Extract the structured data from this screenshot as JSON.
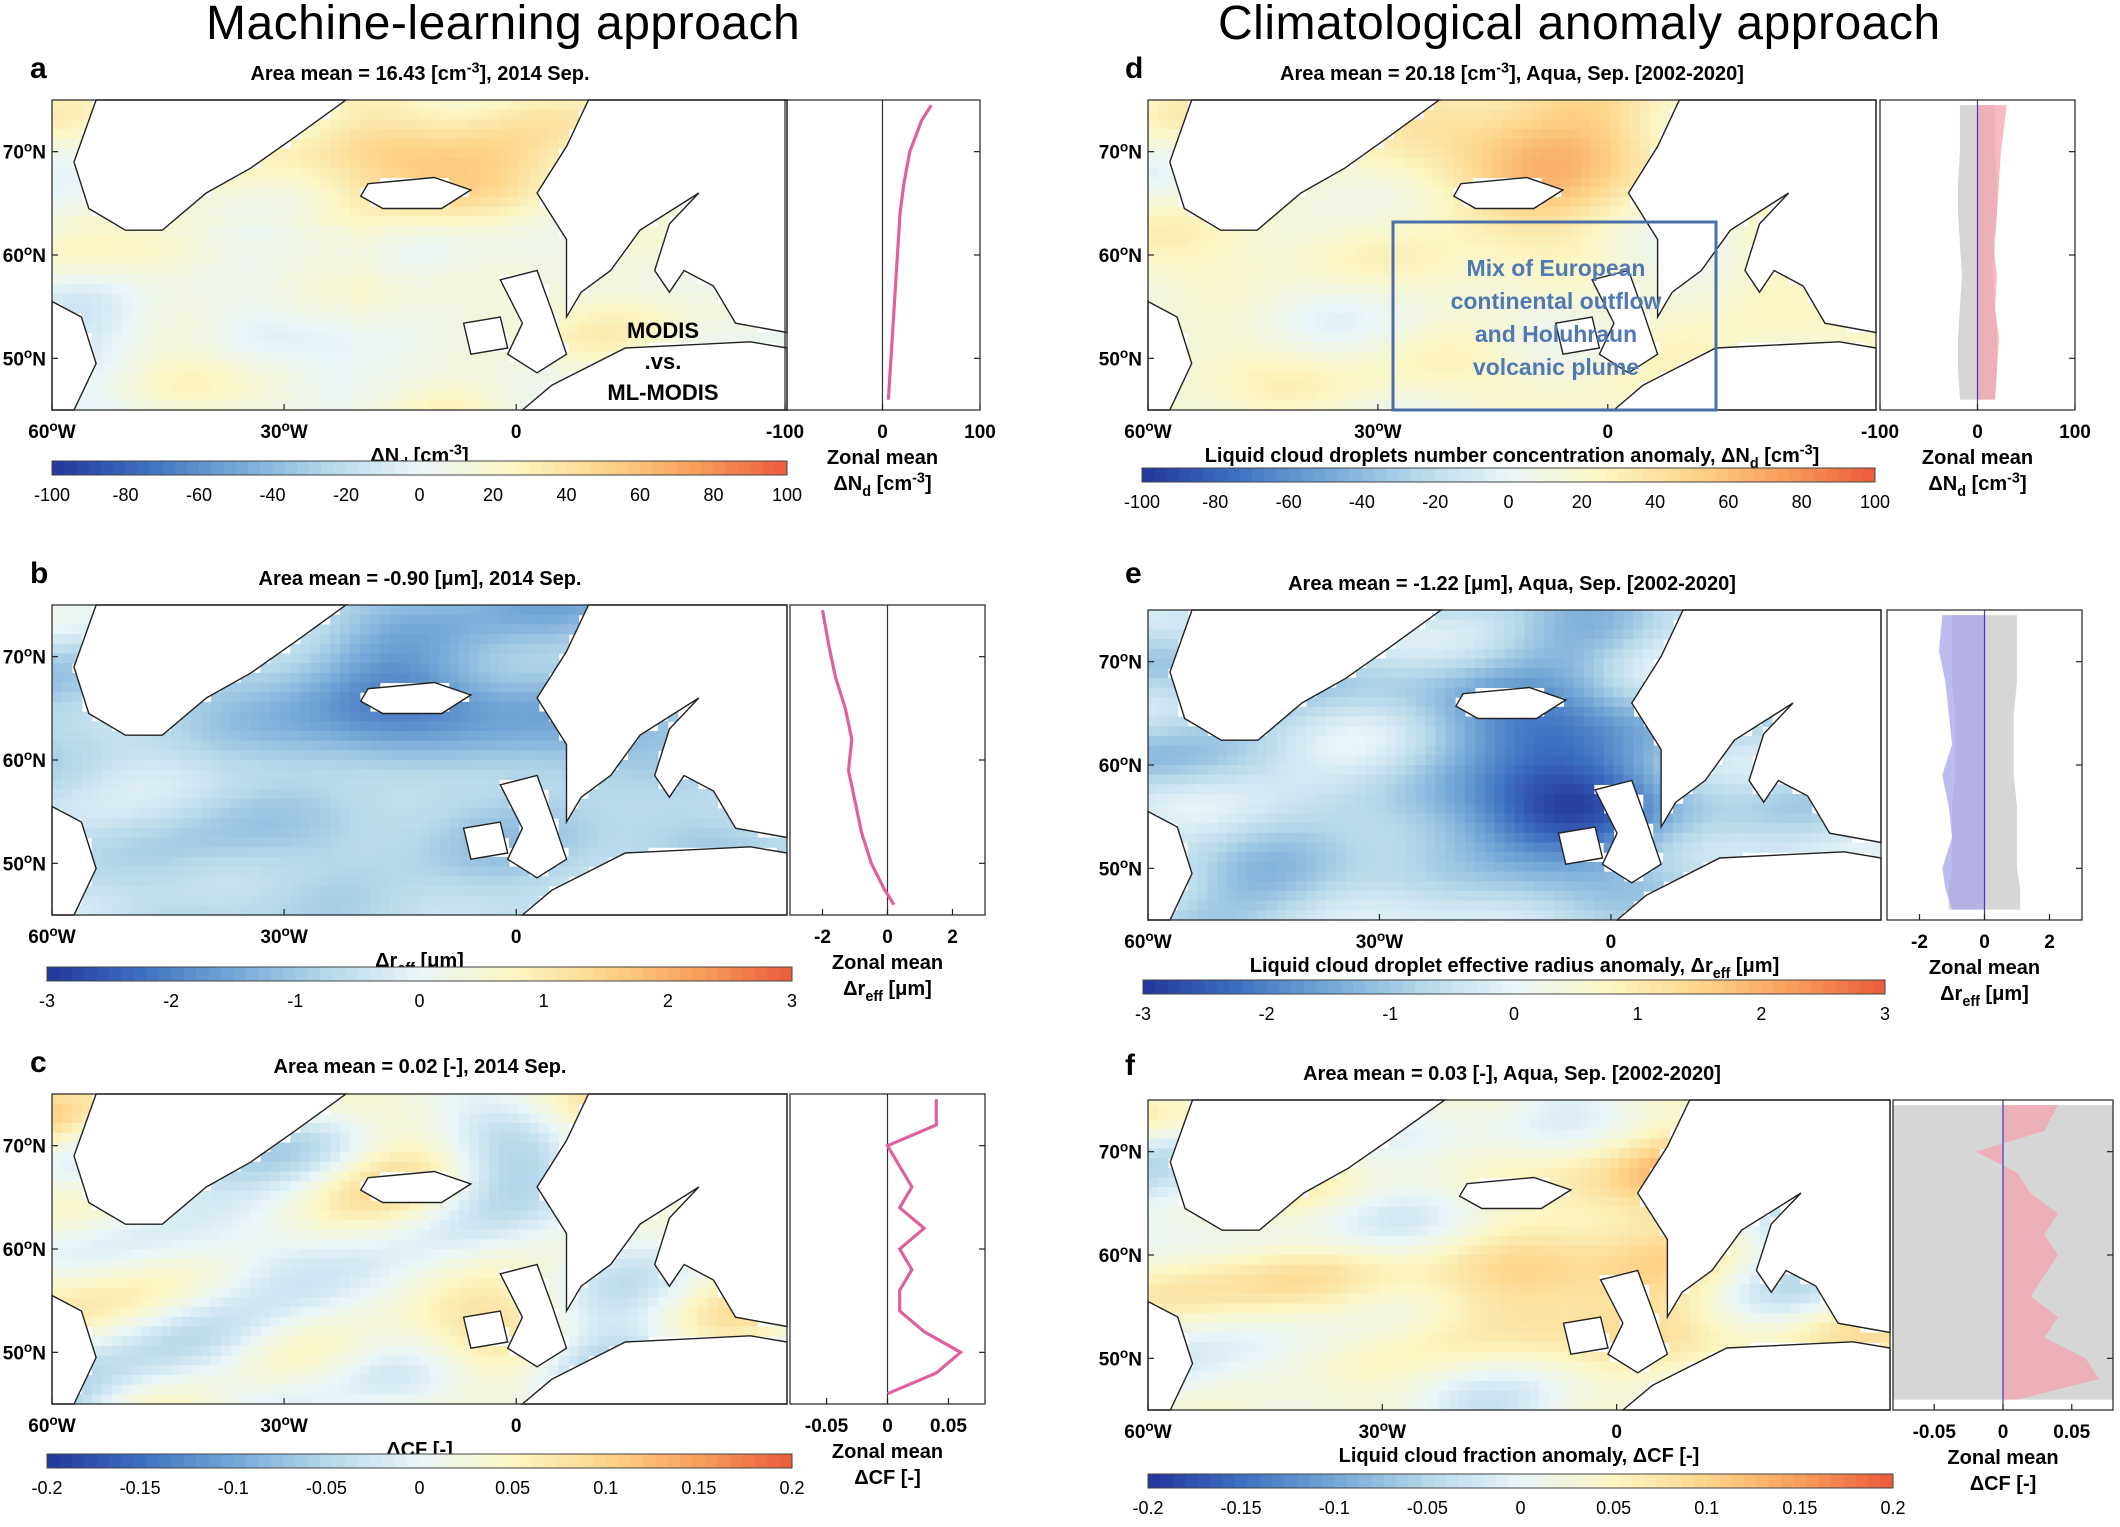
{
  "figure": {
    "left_title": "Machine-learning approach",
    "right_title": "Climatological anomaly approach"
  },
  "colormap": [
    "#23349c",
    "#3d6fc0",
    "#74a7d6",
    "#b5d8ea",
    "#e9f5f8",
    "#fbf6c4",
    "#fdd58a",
    "#f89e5c",
    "#ea5a3b"
  ],
  "zonal_colors": {
    "ml_line": "#e0609e",
    "positive_fill": "#f3a3ae",
    "negative_fill": "#a8a6ea",
    "spread_fill": "#cfcfcf",
    "zero_line": "#3d3db8"
  },
  "map_axis": {
    "lat_ticks": [
      "70°N",
      "60°N",
      "50°N"
    ],
    "lat_values": [
      70,
      60,
      50
    ],
    "lon_ticks": [
      "60°W",
      "30°W",
      "0"
    ],
    "lon_values": [
      -60,
      -30,
      0
    ],
    "lat_range": [
      45,
      75
    ],
    "lon_range": [
      -60,
      35
    ]
  },
  "annotations": {
    "modis_label": [
      "MODIS",
      ".vs.",
      "ML-MODIS"
    ],
    "box_label": [
      "Mix of European",
      "continental outflow",
      "and Holuhraun",
      "volcanic plume"
    ]
  },
  "chart_data": [
    {
      "type": "heatmap",
      "panel": "a",
      "title": "Area mean = 16.43  [cm⁻³], 2014 Sep.",
      "map_xlabel": "ΔN_d  [cm⁻³]",
      "zonal_title": "Zonal mean",
      "zonal_label": "ΔN_d [cm⁻³]",
      "cbar_ticks": [
        "-100",
        "-80",
        "-60",
        "-40",
        "-20",
        "0",
        "20",
        "40",
        "60",
        "80",
        "100"
      ],
      "cbar_range": [
        -100,
        100
      ],
      "zonal_ticks": [
        "-100",
        "0",
        "100"
      ],
      "zonal_xlim": [
        -100,
        100
      ],
      "lat": [
        46,
        49,
        52,
        55,
        58,
        61,
        64,
        67,
        70,
        73,
        74.5
      ],
      "zonal_mean": [
        6,
        8,
        10,
        12,
        14,
        16,
        18,
        22,
        28,
        40,
        50
      ],
      "pattern": "nd"
    },
    {
      "type": "heatmap",
      "panel": "b",
      "title": "Area mean = -0.90  [μm], 2014 Sep.",
      "map_xlabel": "Δr_eff  [μm]",
      "zonal_title": "Zonal mean",
      "zonal_label": "Δr_eff [μm]",
      "cbar_ticks": [
        "-3",
        "-2",
        "-1",
        "0",
        "1",
        "2",
        "3"
      ],
      "cbar_range": [
        -3,
        3
      ],
      "zonal_ticks": [
        "-2",
        "0",
        "2"
      ],
      "zonal_xlim": [
        -3,
        3
      ],
      "lat": [
        46,
        47.5,
        50,
        53,
        56,
        59,
        62,
        65,
        68,
        71,
        74.5
      ],
      "zonal_mean": [
        0.2,
        -0.1,
        -0.5,
        -0.8,
        -1.0,
        -1.2,
        -1.1,
        -1.3,
        -1.6,
        -1.8,
        -2.0
      ],
      "pattern": "reff"
    },
    {
      "type": "heatmap",
      "panel": "c",
      "title": "Area mean = 0.02  [-], 2014 Sep.",
      "map_xlabel": "ΔCF  [-]",
      "zonal_title": "Zonal mean",
      "zonal_label": "ΔCF [-]",
      "cbar_ticks": [
        "-0.2",
        "-0.15",
        "-0.1",
        "-0.05",
        "0",
        "0.05",
        "0.1",
        "0.15",
        "0.2"
      ],
      "cbar_range": [
        -0.2,
        0.2
      ],
      "zonal_ticks": [
        "-0.05",
        "0",
        "0.05"
      ],
      "zonal_xlim": [
        -0.08,
        0.08
      ],
      "lat": [
        46,
        48,
        50,
        52,
        54,
        56,
        58,
        60,
        62,
        64,
        66,
        68,
        70,
        72,
        74.5
      ],
      "zonal_mean": [
        0.0,
        0.04,
        0.06,
        0.03,
        0.01,
        0.01,
        0.02,
        0.01,
        0.03,
        0.01,
        0.02,
        0.01,
        0.0,
        0.04,
        0.04
      ],
      "pattern": "cf"
    },
    {
      "type": "heatmap",
      "panel": "d",
      "title": "Area mean = 20.18 [cm⁻³], Aqua, Sep. [2002-2020]",
      "map_xlabel": "Liquid cloud droplets number concentration anomaly, ΔN_d [cm⁻³]",
      "zonal_title": "Zonal mean",
      "zonal_label": "ΔN_d [cm⁻³]",
      "cbar_ticks": [
        "-100",
        "-80",
        "-60",
        "-40",
        "-20",
        "0",
        "20",
        "40",
        "60",
        "80",
        "100"
      ],
      "cbar_range": [
        -100,
        100
      ],
      "zonal_ticks": [
        "-100",
        "0",
        "100"
      ],
      "zonal_xlim": [
        -100,
        100
      ],
      "lat": [
        46,
        49,
        52,
        55,
        58,
        61,
        64,
        67,
        70,
        73,
        74.5
      ],
      "zonal_mean": [
        18,
        20,
        22,
        18,
        20,
        16,
        20,
        22,
        24,
        28,
        30
      ],
      "zonal_spread": [
        18,
        20,
        20,
        18,
        16,
        18,
        20,
        20,
        18,
        18,
        18
      ],
      "pattern": "nd2"
    },
    {
      "type": "heatmap",
      "panel": "e",
      "title": "Area mean = -1.22 [μm], Aqua, Sep. [2002-2020]",
      "map_xlabel": "Liquid cloud droplet effective radius anomaly, Δr_eff [μm]",
      "zonal_title": "Zonal mean",
      "zonal_label": "Δr_eff [μm]",
      "cbar_ticks": [
        "-3",
        "-2",
        "-1",
        "0",
        "1",
        "2",
        "3"
      ],
      "cbar_range": [
        -3,
        3
      ],
      "zonal_ticks": [
        "-2",
        "0",
        "2"
      ],
      "zonal_xlim": [
        -3,
        3
      ],
      "lat": [
        46,
        48,
        50,
        53,
        56,
        59,
        62,
        65,
        68,
        71,
        74.5
      ],
      "zonal_mean": [
        -1.0,
        -1.2,
        -1.3,
        -1.0,
        -1.1,
        -1.3,
        -1.0,
        -1.1,
        -1.2,
        -1.4,
        -1.3
      ],
      "zonal_spread": [
        1.1,
        1.1,
        1.0,
        1.0,
        1.0,
        0.9,
        0.9,
        0.9,
        1.0,
        1.0,
        1.0
      ],
      "pattern": "reff2"
    },
    {
      "type": "heatmap",
      "panel": "f",
      "title": "Area mean = 0.03 [-], Aqua, Sep. [2002-2020]",
      "map_xlabel": "Liquid cloud fraction anomaly, ΔCF [-]",
      "zonal_title": "Zonal mean",
      "zonal_label": "ΔCF [-]",
      "cbar_ticks": [
        "-0.2",
        "-0.15",
        "-0.1",
        "-0.05",
        "0",
        "0.05",
        "0.1",
        "0.15",
        "0.2"
      ],
      "cbar_range": [
        -0.2,
        0.2
      ],
      "zonal_ticks": [
        "-0.05",
        "0",
        "0.05"
      ],
      "zonal_xlim": [
        -0.08,
        0.08
      ],
      "lat": [
        46,
        48,
        50,
        52,
        54,
        56,
        58,
        60,
        62,
        64,
        66,
        68,
        70,
        72,
        74.5
      ],
      "zonal_mean": [
        0.01,
        0.07,
        0.06,
        0.03,
        0.04,
        0.02,
        0.03,
        0.04,
        0.03,
        0.04,
        0.02,
        0.01,
        -0.02,
        0.03,
        0.04
      ],
      "zonal_spread": [
        0.08,
        0.08,
        0.08,
        0.08,
        0.08,
        0.08,
        0.08,
        0.08,
        0.08,
        0.08,
        0.08,
        0.08,
        0.08,
        0.08,
        0.08
      ],
      "pattern": "cf2"
    }
  ]
}
